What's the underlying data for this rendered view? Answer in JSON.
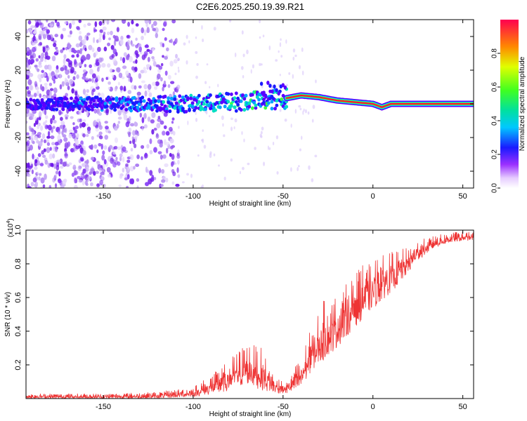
{
  "title": "C2E6.2025.250.19.39.R21",
  "colors": {
    "snr_line": "#ee3333",
    "ridge": "#ff1133",
    "scatter": "#7d2ef5"
  },
  "chart_data": [
    {
      "type": "heatmap",
      "name": "spectrogram",
      "xlabel": "Height of straight line (km)",
      "ylabel": "Frequency (Hz)",
      "xlim": [
        -193,
        56
      ],
      "ylim": [
        -50,
        50
      ],
      "xticks": [
        -150,
        -100,
        -50,
        0,
        50
      ],
      "xtick_labels": [
        "-150",
        "-100",
        "-50",
        "0",
        "50"
      ],
      "yticks": [
        -40,
        -20,
        0,
        20,
        40
      ],
      "ytick_labels": [
        "-40",
        "-20",
        "0",
        "20",
        "40"
      ],
      "ridge": {
        "description_points": [
          {
            "x": -190,
            "f": 0
          },
          {
            "x": -150,
            "f": 0
          },
          {
            "x": -120,
            "f": 0
          },
          {
            "x": -100,
            "f": 0
          },
          {
            "x": -80,
            "f": 1
          },
          {
            "x": -60,
            "f": 2
          },
          {
            "x": -50,
            "f": 3
          },
          {
            "x": -40,
            "f": 5
          },
          {
            "x": -30,
            "f": 4
          },
          {
            "x": -20,
            "f": 2
          },
          {
            "x": -10,
            "f": 1
          },
          {
            "x": 0,
            "f": 0
          },
          {
            "x": 5,
            "f": -2
          },
          {
            "x": 10,
            "f": 0
          },
          {
            "x": 56,
            "f": 0
          }
        ]
      },
      "colorbar": {
        "label": "Normalized spectral amplitude",
        "range": [
          0,
          1
        ],
        "ticks": [
          0.0,
          0.2,
          0.4,
          0.6,
          0.8
        ],
        "tick_labels": [
          "0.0",
          "0.2",
          "0.4",
          "0.6",
          "0.8"
        ]
      }
    },
    {
      "type": "line",
      "name": "snr",
      "xlabel": "Height of straight line (km)",
      "ylabel": "SNR (10 * v/v)",
      "scale_label": "(x10",
      "scale_exp": "4",
      "scale_close": ")",
      "xlim": [
        -193,
        56
      ],
      "ylim": [
        0,
        1.0
      ],
      "xticks": [
        -150,
        -100,
        -50,
        0,
        50
      ],
      "xtick_labels": [
        "-150",
        "-100",
        "-50",
        "0",
        "50"
      ],
      "yticks": [
        0.2,
        0.4,
        0.6,
        0.8,
        1.0
      ],
      "ytick_labels": [
        "0.2",
        "0.4",
        "0.6",
        "0.8",
        "1.0"
      ],
      "envelope": [
        {
          "x": -193,
          "lo": 0.0,
          "hi": 0.03
        },
        {
          "x": -150,
          "lo": 0.0,
          "hi": 0.03
        },
        {
          "x": -120,
          "lo": 0.0,
          "hi": 0.04
        },
        {
          "x": -100,
          "lo": 0.01,
          "hi": 0.07
        },
        {
          "x": -85,
          "lo": 0.03,
          "hi": 0.18
        },
        {
          "x": -70,
          "lo": 0.08,
          "hi": 0.34
        },
        {
          "x": -62,
          "lo": 0.05,
          "hi": 0.3
        },
        {
          "x": -55,
          "lo": 0.03,
          "hi": 0.14
        },
        {
          "x": -48,
          "lo": 0.03,
          "hi": 0.1
        },
        {
          "x": -40,
          "lo": 0.05,
          "hi": 0.26
        },
        {
          "x": -35,
          "lo": 0.15,
          "hi": 0.4
        },
        {
          "x": -28,
          "lo": 0.22,
          "hi": 0.58
        },
        {
          "x": -20,
          "lo": 0.3,
          "hi": 0.62
        },
        {
          "x": -12,
          "lo": 0.4,
          "hi": 0.72
        },
        {
          "x": -5,
          "lo": 0.48,
          "hi": 0.8
        },
        {
          "x": 5,
          "lo": 0.58,
          "hi": 0.86
        },
        {
          "x": 15,
          "lo": 0.68,
          "hi": 0.88
        },
        {
          "x": 25,
          "lo": 0.82,
          "hi": 0.94
        },
        {
          "x": 35,
          "lo": 0.9,
          "hi": 0.97
        },
        {
          "x": 45,
          "lo": 0.93,
          "hi": 0.99
        },
        {
          "x": 56,
          "lo": 0.94,
          "hi": 0.99
        }
      ]
    }
  ]
}
